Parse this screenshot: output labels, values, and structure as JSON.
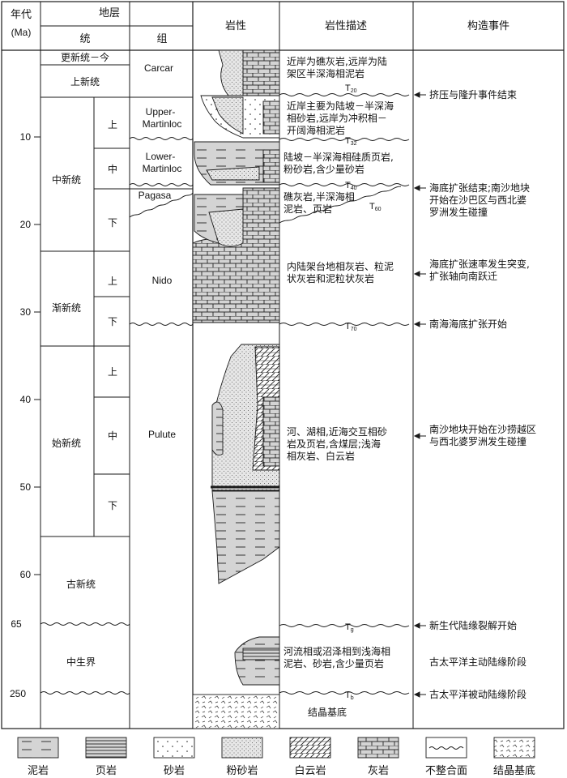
{
  "header": {
    "age": "年代",
    "age_unit": "(Ma)",
    "strata": "地层",
    "series": "统",
    "formation": "组",
    "lithology": "岩性",
    "description": "岩性描述",
    "tectonic": "构造事件"
  },
  "age_ticks": [
    "10",
    "20",
    "30",
    "40",
    "50",
    "60",
    "65",
    "250"
  ],
  "series": {
    "pleistocene_holocene": "更新统－今",
    "pliocene": "上新统",
    "miocene": "中新统",
    "oligocene": "渐新统",
    "eocene": "始新统",
    "paleocene": "古新统",
    "mesozoic": "中生界"
  },
  "subdivisions": {
    "mio_upper": "上",
    "mio_middle": "中",
    "mio_lower": "下",
    "oli_upper": "上",
    "oli_lower": "下",
    "eo_upper": "上",
    "eo_middle": "中",
    "eo_lower": "下"
  },
  "formations": {
    "carcar": "Carcar",
    "upper_martinloc_1": "Upper-",
    "upper_martinloc_2": "Martinloc",
    "lower_martinloc_1": "Lower-",
    "lower_martinloc_2": "Martinloc",
    "pagasa": "Pagasa",
    "nido": "Nido",
    "pulute": "Pulute"
  },
  "descriptions": {
    "d1_l1": "近岸为礁灰岩,远岸为陆",
    "d1_l2": "架区半深海相泥岩",
    "d2_l1": "近岸主要为陆坡－半深海",
    "d2_l2": "相砂岩,远岸为冲积相－",
    "d2_l3": "开阔海相泥岩",
    "d3_l1": "陆坡－半深海相硅质页岩,",
    "d3_l2": "粉砂岩,含少量砂岩",
    "d4_l1": "礁灰岩,半深海相",
    "d4_l2": "泥岩、页岩",
    "d5_l1": "内陆架台地相灰岩、粒泥",
    "d5_l2": "状灰岩和泥粒状灰岩",
    "d6_l1": "河、湖相,近海交互相砂",
    "d6_l2": "岩及页岩,含煤层;浅海",
    "d6_l3": "相灰岩、白云岩",
    "d7_l1": "河流相或沼泽相到浅海相",
    "d7_l2": "泥岩、砂岩,含少量页岩",
    "d8": "结晶基底"
  },
  "horizons": {
    "T20": {
      "main": "T",
      "sub": "20"
    },
    "T32": {
      "main": "T",
      "sub": "32"
    },
    "T40": {
      "main": "T",
      "sub": "40"
    },
    "T60": {
      "main": "T",
      "sub": "60"
    },
    "T70": {
      "main": "T",
      "sub": "70"
    },
    "Tg": {
      "main": "T",
      "sub": "g"
    },
    "Tb": {
      "main": "T",
      "sub": "b"
    }
  },
  "events": {
    "e1": "挤压与隆升事件结束",
    "e2_l1": "海底扩张结束;南沙地块",
    "e2_l2": "开始在沙巴区与西北婆",
    "e2_l3": "罗洲发生碰撞",
    "e3_l1": "海底扩张速率发生突变,",
    "e3_l2": "扩张轴向南跃迁",
    "e4": "南海海底扩张开始",
    "e5_l1": "南沙地块开始在沙捞越区",
    "e5_l2": "与西北婆罗洲发生碰撞",
    "e6": "新生代陆缘裂解开始",
    "e7": "古太平洋主动陆缘阶段",
    "e8": "古太平洋被动陆缘阶段"
  },
  "legend": [
    "泥岩",
    "页岩",
    "砂岩",
    "粉砂岩",
    "白云岩",
    "灰岩",
    "不整合面",
    "结晶基底"
  ],
  "colors": {
    "line": "#1a1a1a",
    "fill": "#d4d4d4",
    "paper": "#ffffff"
  }
}
